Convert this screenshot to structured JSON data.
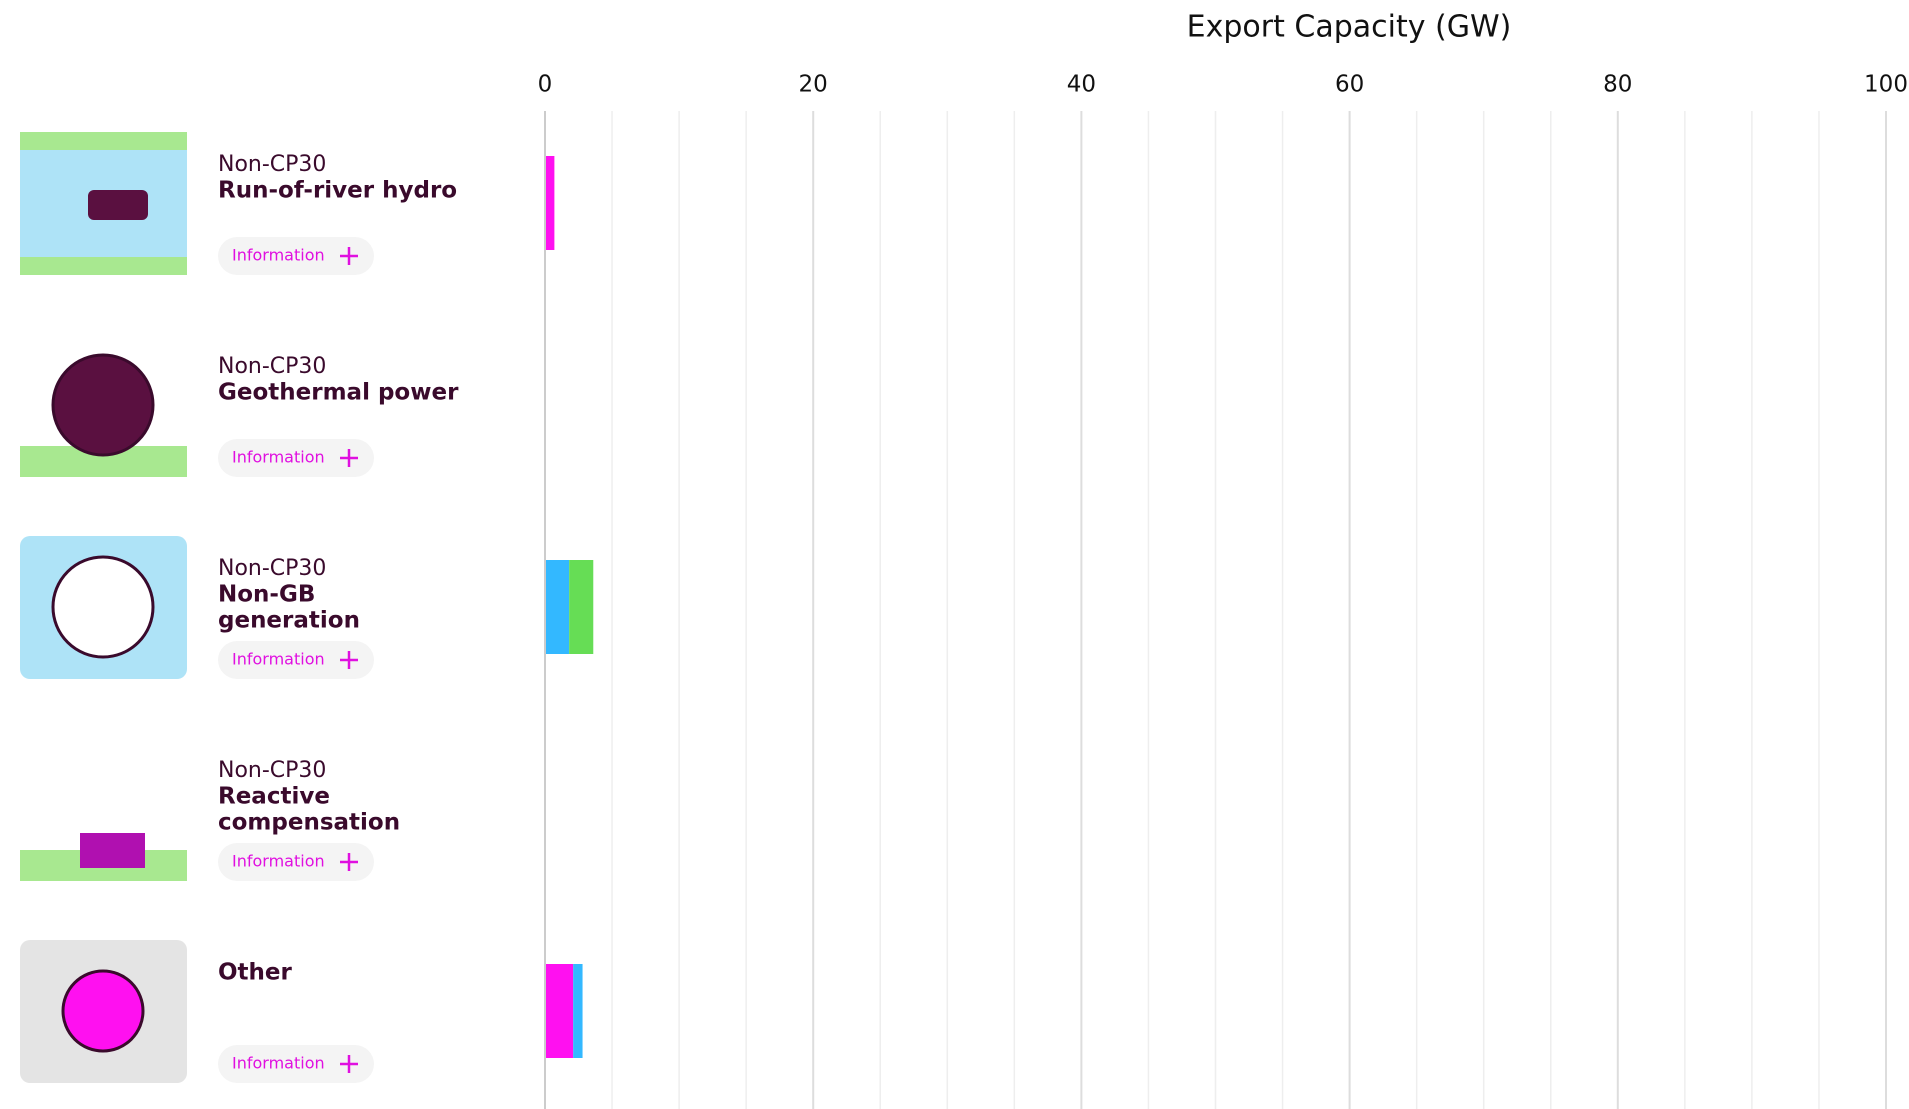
{
  "chart_data": {
    "type": "bar",
    "orientation": "horizontal",
    "stacked": true,
    "x_label": "Export Capacity (GW)",
    "xlim": [
      0,
      100
    ],
    "xticks": [
      0,
      20,
      40,
      60,
      80,
      100
    ],
    "minor_xticks": [
      5,
      10,
      15,
      25,
      30,
      35,
      45,
      50,
      55,
      65,
      70,
      75,
      85,
      90,
      95
    ],
    "grid": true,
    "rows": [
      {
        "group": "Non-CP30",
        "name_lines": [
          "Run-of-river hydro"
        ],
        "button": "Information"
      },
      {
        "group": "Non-CP30",
        "name_lines": [
          "Geothermal power"
        ],
        "button": "Information"
      },
      {
        "group": "Non-CP30",
        "name_lines": [
          "Non-GB",
          "generation"
        ],
        "button": "Information"
      },
      {
        "group": "Non-CP30",
        "name_lines": [
          "Reactive",
          "compensation"
        ],
        "button": "Information"
      },
      {
        "name_lines": [
          "Other"
        ],
        "button": "Information"
      }
    ],
    "series": [
      {
        "color": "#ff10f0",
        "values": [
          0.7,
          0,
          0,
          0,
          2.1
        ]
      },
      {
        "color": "#33b8ff",
        "values": [
          0,
          0,
          1.8,
          0,
          0.7
        ]
      },
      {
        "color": "#66dd55",
        "values": [
          0,
          0,
          1.8,
          0,
          0
        ]
      }
    ]
  }
}
